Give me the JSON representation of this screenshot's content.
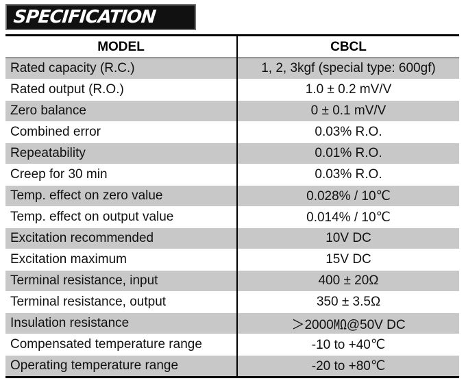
{
  "header": {
    "title": "SPECIFICATION"
  },
  "table": {
    "columns": [
      "MODEL",
      "CBCL"
    ],
    "rows": [
      [
        "Rated capacity (R.C.)",
        "1, 2, 3kgf (special type: 600gf)"
      ],
      [
        "Rated output (R.O.)",
        "1.0 ± 0.2 mV/V"
      ],
      [
        "Zero balance",
        "0 ± 0.1 mV/V"
      ],
      [
        "Combined error",
        "0.03% R.O."
      ],
      [
        "Repeatability",
        "0.01% R.O."
      ],
      [
        "Creep for 30 min",
        "0.03% R.O."
      ],
      [
        "Temp. effect on zero value",
        "0.028% / 10℃"
      ],
      [
        "Temp. effect on output value",
        "0.014% / 10℃"
      ],
      [
        "Excitation recommended",
        "10V DC"
      ],
      [
        "Excitation maximum",
        "15V DC"
      ],
      [
        "Terminal resistance, input",
        "400 ± 20Ω"
      ],
      [
        "Terminal resistance, output",
        "350 ± 3.5Ω"
      ],
      [
        "Insulation resistance",
        "＞2000㏁@50V DC"
      ],
      [
        "Compensated temperature range",
        "-10 to +40℃"
      ],
      [
        "Operating temperature range",
        "-20 to +80℃"
      ]
    ]
  },
  "colors": {
    "banner_bg": "#111111",
    "row_shade": "#c8c8c8",
    "text": "#111111"
  }
}
